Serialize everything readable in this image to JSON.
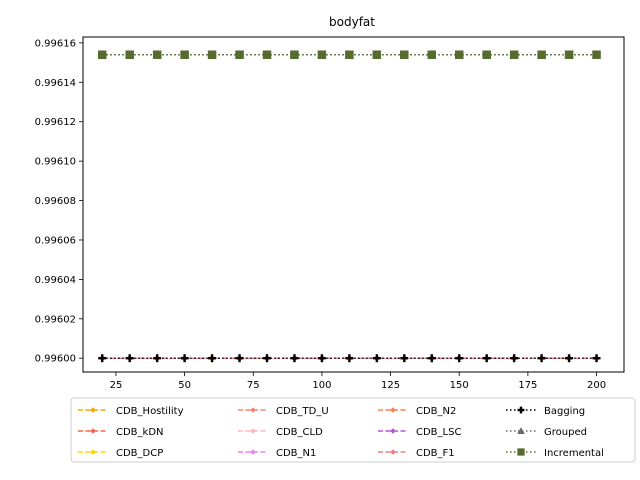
{
  "chart_data": {
    "type": "line",
    "title": "bodyfat",
    "xlabel": "",
    "ylabel": "",
    "xlim": [
      13,
      210
    ],
    "ylim": [
      0.995993,
      0.996163
    ],
    "xticks": [
      25,
      50,
      75,
      100,
      125,
      150,
      175,
      200
    ],
    "yticks": [
      0.996,
      0.99602,
      0.99604,
      0.99606,
      0.99608,
      0.9961,
      0.99612,
      0.99614,
      0.99616
    ],
    "ytick_labels": [
      "0.99600",
      "0.99602",
      "0.99604",
      "0.99606",
      "0.99608",
      "0.99610",
      "0.99612",
      "0.99614",
      "0.99616"
    ],
    "x": [
      20,
      30,
      40,
      50,
      60,
      70,
      80,
      90,
      100,
      110,
      120,
      130,
      140,
      150,
      160,
      170,
      180,
      190,
      200
    ],
    "legend_position": "below",
    "series": [
      {
        "name": "CDB_Hostility",
        "color": "#ffa500",
        "dash": "dashed",
        "marker": "diamond",
        "value": 0.996
      },
      {
        "name": "CDB_kDN",
        "color": "#ff6347",
        "dash": "dashed",
        "marker": "diamond",
        "value": 0.996
      },
      {
        "name": "CDB_DCP",
        "color": "#ffd700",
        "dash": "dashed",
        "marker": "diamond",
        "value": 0.996
      },
      {
        "name": "CDB_TD_U",
        "color": "#fa8072",
        "dash": "dashed",
        "marker": "diamond",
        "value": 0.996
      },
      {
        "name": "CDB_CLD",
        "color": "#ffb6c1",
        "dash": "dashed",
        "marker": "diamond",
        "value": 0.996
      },
      {
        "name": "CDB_N1",
        "color": "#ee82ee",
        "dash": "dashed",
        "marker": "diamond",
        "value": 0.996
      },
      {
        "name": "CDB_N2",
        "color": "#ff7f50",
        "dash": "dashed",
        "marker": "diamond",
        "value": 0.996
      },
      {
        "name": "CDB_LSC",
        "color": "#ba55d3",
        "dash": "dashed",
        "marker": "diamond",
        "value": 0.996
      },
      {
        "name": "CDB_F1",
        "color": "#f08080",
        "dash": "dashed",
        "marker": "diamond",
        "value": 0.996
      },
      {
        "name": "Bagging",
        "color": "#000000",
        "dash": "dotted",
        "marker": "plus",
        "value": 0.996
      },
      {
        "name": "Grouped",
        "color": "#696969",
        "dash": "dotted",
        "marker": "triangle",
        "value": 0.996154
      },
      {
        "name": "Incremental",
        "color": "#556b2f",
        "dash": "dotted",
        "marker": "square",
        "value": 0.996154
      }
    ]
  }
}
